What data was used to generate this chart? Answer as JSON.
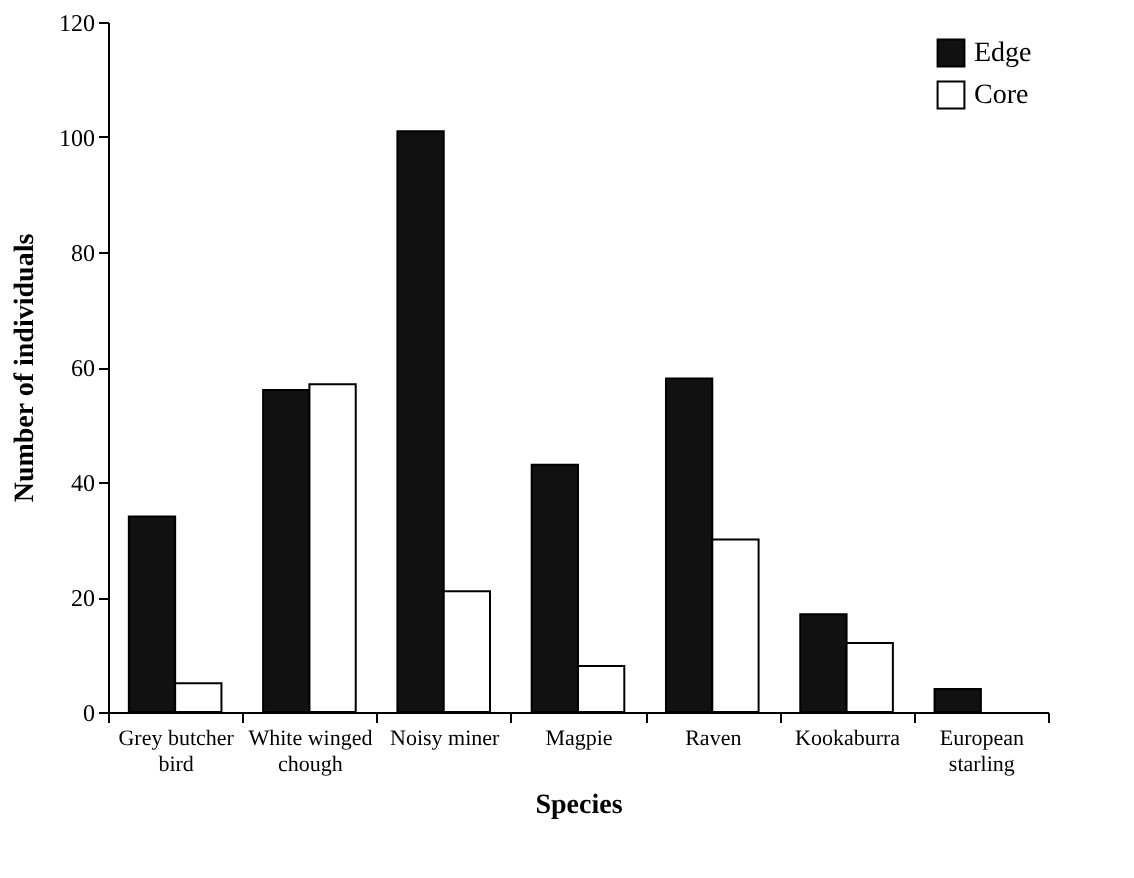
{
  "chart_data": {
    "type": "bar",
    "xlabel": "Species",
    "ylabel": "Number of individuals",
    "categories": [
      "Grey butcher bird",
      "White winged chough",
      "Noisy miner",
      "Magpie",
      "Raven",
      "Kookaburra",
      "European starling"
    ],
    "series": [
      {
        "name": "Edge",
        "color": "#111111",
        "values": [
          34,
          56,
          101,
          43,
          58,
          17,
          4
        ]
      },
      {
        "name": "Core",
        "color": "#ffffff",
        "values": [
          5,
          57,
          21,
          8,
          30,
          12,
          null
        ]
      }
    ],
    "ylim": [
      0,
      120
    ],
    "yticks": [
      0,
      20,
      40,
      60,
      80,
      100,
      120
    ],
    "grid": false,
    "legend": "top right"
  }
}
